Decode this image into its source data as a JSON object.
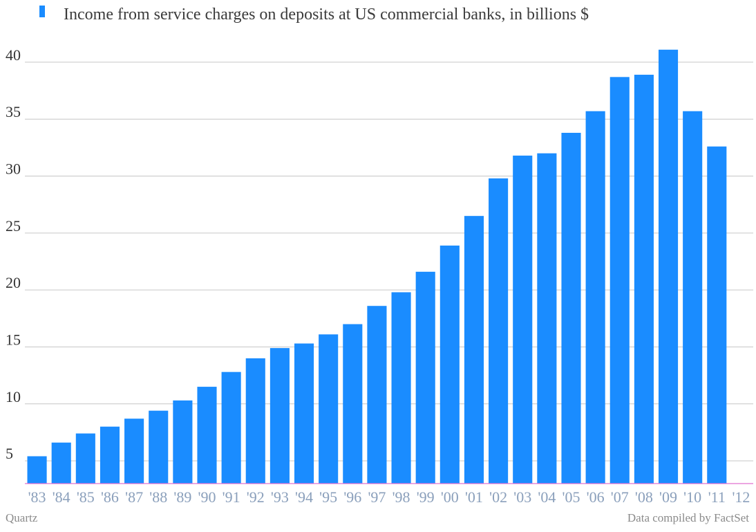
{
  "chart_data": {
    "type": "bar",
    "legend": "Income from service charges on deposits at US commercial banks, in billions $",
    "legend_position": "top-left",
    "categories": [
      "'83",
      "'84",
      "'85",
      "'86",
      "'87",
      "'88",
      "'89",
      "'90",
      "'91",
      "'92",
      "'93",
      "'94",
      "'95",
      "'96",
      "'97",
      "'98",
      "'99",
      "'00",
      "'01",
      "'02",
      "'03",
      "'04",
      "'05",
      "'06",
      "'07",
      "'08",
      "'09",
      "'10",
      "'11",
      "'12"
    ],
    "series": [
      {
        "name": "Income from service charges on deposits at US commercial banks, in billions $",
        "color": "#1a8cff",
        "values": [
          5.4,
          6.6,
          7.4,
          8.0,
          8.7,
          9.4,
          10.3,
          11.5,
          12.8,
          14.0,
          14.9,
          15.3,
          16.1,
          17.0,
          18.6,
          19.8,
          21.6,
          23.9,
          26.5,
          29.8,
          31.8,
          32.0,
          33.8,
          35.7,
          38.7,
          38.9,
          41.1,
          35.7,
          32.6,
          null
        ]
      }
    ],
    "y_ticks": [
      "5",
      "10",
      "15",
      "20",
      "25",
      "30",
      "35",
      "40"
    ],
    "y_tick_values": [
      5,
      10,
      15,
      20,
      25,
      30,
      35,
      40
    ],
    "ylim": [
      3,
      42
    ],
    "grid": true,
    "baseline_color": "#e070d0"
  },
  "footer": {
    "left": "Quartz",
    "right": "Data compiled by FactSet"
  }
}
